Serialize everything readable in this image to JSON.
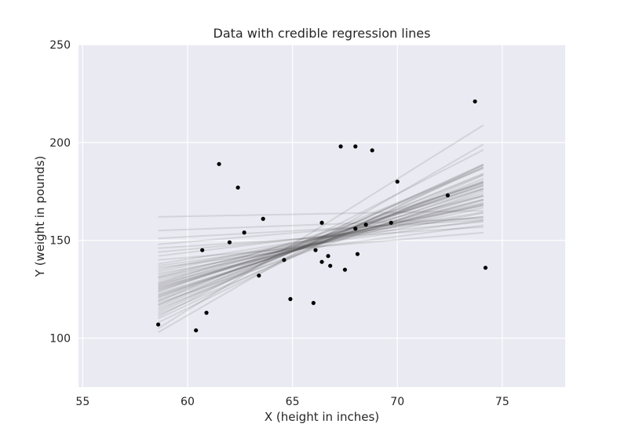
{
  "chart_data": {
    "type": "scatter",
    "title": "Data with credible regression lines",
    "xlabel": "X (height in inches)",
    "ylabel": "Y (weight in pounds)",
    "xlim": [
      54.8,
      78
    ],
    "ylim": [
      75,
      250
    ],
    "xticks": [
      "55",
      "60",
      "65",
      "70",
      "75"
    ],
    "yticks": [
      "100",
      "150",
      "200",
      "250"
    ],
    "grid": true,
    "background_color": "#eaeaf2",
    "grid_color": "#ffffff",
    "point_color": "#000000",
    "line_color": "#3a3a3a",
    "points": {
      "x": [
        58.6,
        60.4,
        60.7,
        60.9,
        61.5,
        62.0,
        62.4,
        62.7,
        63.4,
        63.6,
        64.6,
        64.9,
        66.0,
        66.1,
        66.4,
        66.4,
        66.7,
        66.8,
        67.3,
        67.5,
        68.0,
        68.0,
        68.1,
        68.5,
        68.8,
        69.7,
        70.0,
        72.4,
        73.7,
        74.2
      ],
      "y": [
        107,
        104,
        145,
        113,
        189,
        149,
        177,
        154,
        132,
        161,
        140,
        120,
        118,
        145,
        139,
        159,
        142,
        137,
        198,
        135,
        198,
        156,
        143,
        158,
        196,
        159,
        180,
        173,
        221,
        136
      ]
    },
    "regression_lines": {
      "x_range": [
        58.6,
        74.1
      ],
      "intercept_at_xmin": [
        117,
        121,
        127,
        110,
        103,
        131,
        124,
        115,
        136,
        128,
        119,
        112,
        126,
        133,
        122,
        118,
        130,
        140,
        108,
        125,
        146,
        123,
        116,
        129,
        137,
        120,
        151,
        127,
        114,
        132,
        121,
        142,
        105,
        124,
        134,
        119,
        148,
        126,
        113,
        131,
        155,
        122,
        117,
        138,
        128,
        162,
        111,
        125,
        135,
        144
      ],
      "slope": [
        4.3,
        3.7,
        3.2,
        5.0,
        6.2,
        2.3,
        3.5,
        4.3,
        1.4,
        2.6,
        3.9,
        4.6,
        3.0,
        2.0,
        3.5,
        3.7,
        2.5,
        0.9,
        5.2,
        3.1,
        0.7,
        3.3,
        4.4,
        2.7,
        1.5,
        3.9,
        0.6,
        2.8,
        4.8,
        2.4,
        3.8,
        1.3,
        6.7,
        3.6,
        2.2,
        4.4,
        0.9,
        2.9,
        4.9,
        2.7,
        0.4,
        3.5,
        4.5,
        1.7,
        3.3,
        0.2,
        5.5,
        3.4,
        2.1,
        1.0
      ]
    }
  }
}
